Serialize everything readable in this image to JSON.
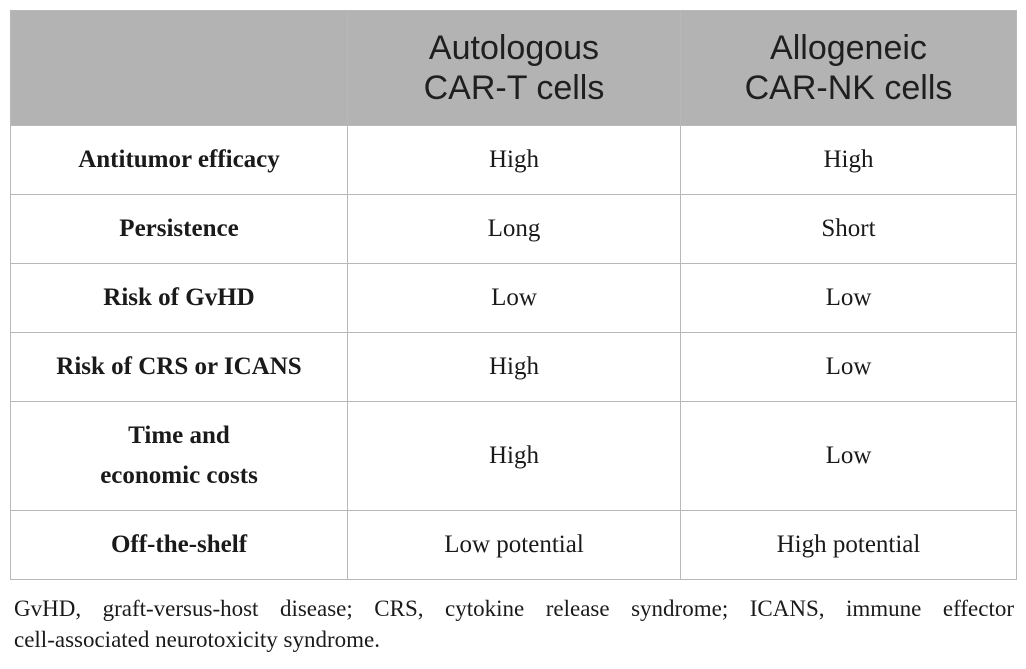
{
  "table": {
    "headers": [
      "",
      [
        "Autologous",
        "CAR-T cells"
      ],
      [
        "Allogeneic",
        "CAR-NK cells"
      ]
    ],
    "rows": [
      {
        "label": [
          "Antitumor efficacy"
        ],
        "car_t": "High",
        "car_nk": "High"
      },
      {
        "label": [
          "Persistence"
        ],
        "car_t": "Long",
        "car_nk": "Short"
      },
      {
        "label": [
          "Risk of GvHD"
        ],
        "car_t": "Low",
        "car_nk": "Low"
      },
      {
        "label": [
          "Risk of CRS or ICANS"
        ],
        "car_t": "High",
        "car_nk": "Low"
      },
      {
        "label": [
          "Time and",
          "economic costs"
        ],
        "car_t": "High",
        "car_nk": "Low"
      },
      {
        "label": [
          "Off-the-shelf"
        ],
        "car_t": "Low potential",
        "car_nk": "High potential"
      }
    ]
  },
  "footnote": [
    "GvHD, graft-versus-host disease; CRS, cytokine release syndrome; ICANS, immune effector",
    "cell-associated neurotoxicity syndrome."
  ]
}
